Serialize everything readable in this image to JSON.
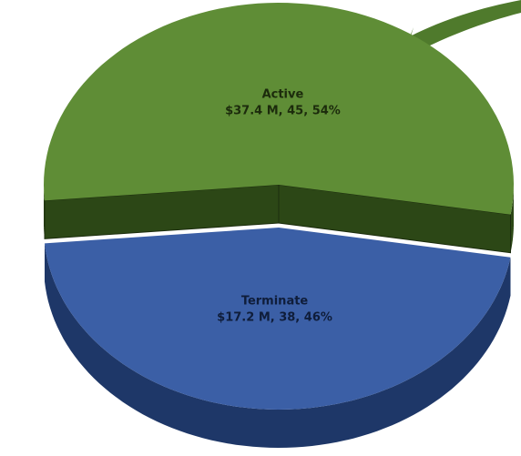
{
  "chart_data": {
    "type": "pie",
    "categories": [
      "Active",
      "Terminate"
    ],
    "values": [
      54,
      46
    ],
    "value_labels": [
      "$37.4 M, 45, 54%",
      "$17.2 M, 38, 46%"
    ],
    "colors": [
      "#5f8d36",
      "#3b5fa6"
    ],
    "side_colors": [
      "#2c4716",
      "#1e3768"
    ],
    "label_colors": [
      "#1c2b0c",
      "#0f1d3a"
    ]
  }
}
